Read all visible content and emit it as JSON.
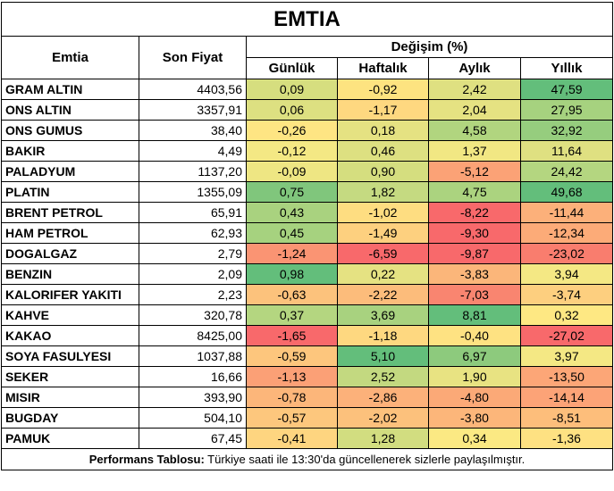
{
  "title": "EMTIA",
  "headers": {
    "commodity": "Emtia",
    "price": "Son Fiyat",
    "change_group": "Değişim (%)",
    "periods": [
      "Günlük",
      "Haftalık",
      "Aylık",
      "Yıllık"
    ]
  },
  "rows": [
    {
      "name": "GRAM ALTIN",
      "price": "4403,56",
      "changes": [
        "0,09",
        "-0,92",
        "2,42",
        "47,59"
      ],
      "colors": [
        "#d6de7f",
        "#fde380",
        "#dfe081",
        "#63be7b"
      ]
    },
    {
      "name": "ONS ALTIN",
      "price": "3357,91",
      "changes": [
        "0,06",
        "-1,17",
        "2,04",
        "27,95"
      ],
      "colors": [
        "#dde081",
        "#fed880",
        "#e5e282",
        "#a6d27f"
      ]
    },
    {
      "name": "ONS GUMUS",
      "price": "38,40",
      "changes": [
        "-0,26",
        "0,18",
        "4,58",
        "32,92"
      ],
      "colors": [
        "#fee583",
        "#e5e282",
        "#b1d57f",
        "#96cd7e"
      ]
    },
    {
      "name": "BAKIR",
      "price": "4,49",
      "changes": [
        "-0,12",
        "0,46",
        "1,37",
        "11,64"
      ],
      "colors": [
        "#f4e884",
        "#dde081",
        "#f1e783",
        "#dfe081"
      ]
    },
    {
      "name": "PALADYUM",
      "price": "1137,20",
      "changes": [
        "-0,09",
        "0,90",
        "-5,12",
        "24,42"
      ],
      "colors": [
        "#eee683",
        "#d5de7f",
        "#fba276",
        "#b4d680"
      ]
    },
    {
      "name": "PLATIN",
      "price": "1355,09",
      "changes": [
        "0,75",
        "1,82",
        "4,75",
        "49,68"
      ],
      "colors": [
        "#80c67c",
        "#c5da81",
        "#ABD37F",
        "#63be7b"
      ]
    },
    {
      "name": "BRENT PETROL",
      "price": "65,91",
      "changes": [
        "0,43",
        "-1,02",
        "-8,22",
        "-11,44"
      ],
      "colors": [
        "#a9d27f",
        "#fedd81",
        "#f8696b",
        "#fcb07a"
      ]
    },
    {
      "name": "HAM PETROL",
      "price": "62,93",
      "changes": [
        "0,45",
        "-1,49",
        "-9,30",
        "-12,34"
      ],
      "colors": [
        "#a6d27f",
        "#fdd07f",
        "#f8696b",
        "#fcab78"
      ]
    },
    {
      "name": "DOGALGAZ",
      "price": "2,79",
      "changes": [
        "-1,24",
        "-6,59",
        "-9,87",
        "-23,02"
      ],
      "colors": [
        "#fa9473",
        "#f8696b",
        "#f8696b",
        "#f97d6e"
      ]
    },
    {
      "name": "BENZIN",
      "price": "2,09",
      "changes": [
        "0,98",
        "0,22",
        "-3,83",
        "3,94"
      ],
      "colors": [
        "#63be7b",
        "#e5e282",
        "#fbb67a",
        "#f4e884"
      ]
    },
    {
      "name": "KALORIFER YAKITI",
      "price": "2,23",
      "changes": [
        "-0,63",
        "-2,22",
        "-7,03",
        "-3,74"
      ],
      "colors": [
        "#fcc27c",
        "#fcbc7b",
        "#f98570",
        "#fdcf7f"
      ]
    },
    {
      "name": "KAHVE",
      "price": "320,78",
      "changes": [
        "0,37",
        "3,69",
        "8,81",
        "0,32"
      ],
      "colors": [
        "#b4d680",
        "#a8d27f",
        "#63be7b",
        "#fee883"
      ]
    },
    {
      "name": "KAKAO",
      "price": "8425,00",
      "changes": [
        "-1,65",
        "-1,18",
        "-0,40",
        "-27,02"
      ],
      "colors": [
        "#f8696b",
        "#fed880",
        "#fee282",
        "#f8696b"
      ]
    },
    {
      "name": "SOYA FASULYESI",
      "price": "1037,88",
      "changes": [
        "-0,59",
        "5,10",
        "6,97",
        "3,97"
      ],
      "colors": [
        "#fdc67d",
        "#63be7b",
        "#8dca7d",
        "#f4e884"
      ]
    },
    {
      "name": "SEKER",
      "price": "16,66",
      "changes": [
        "-1,13",
        "2,52",
        "1,90",
        "-13,50"
      ],
      "colors": [
        "#fba076",
        "#c3d980",
        "#e8e382",
        "#fca677"
      ]
    },
    {
      "name": "MISIR",
      "price": "393,90",
      "changes": [
        "-0,78",
        "-2,86",
        "-4,80",
        "-14,14"
      ],
      "colors": [
        "#fcb67a",
        "#fcb17a",
        "#fba977",
        "#fca377"
      ]
    },
    {
      "name": "BUGDAY",
      "price": "504,10",
      "changes": [
        "-0,57",
        "-2,02",
        "-3,80",
        "-8,51"
      ],
      "colors": [
        "#fdc77d",
        "#fcc17c",
        "#fcb67a",
        "#fdbe7b"
      ]
    },
    {
      "name": "PAMUK",
      "price": "67,45",
      "changes": [
        "-0,41",
        "1,28",
        "0,34",
        "-1,36"
      ],
      "colors": [
        "#fed580",
        "#d2dd80",
        "#fbe983",
        "#fee182"
      ]
    }
  ],
  "footer": {
    "bold": "Performans Tablosu:",
    "text": " Türkiye saati ile 13:30'da güncellenerek sizlerle paylaşılmıştır."
  }
}
